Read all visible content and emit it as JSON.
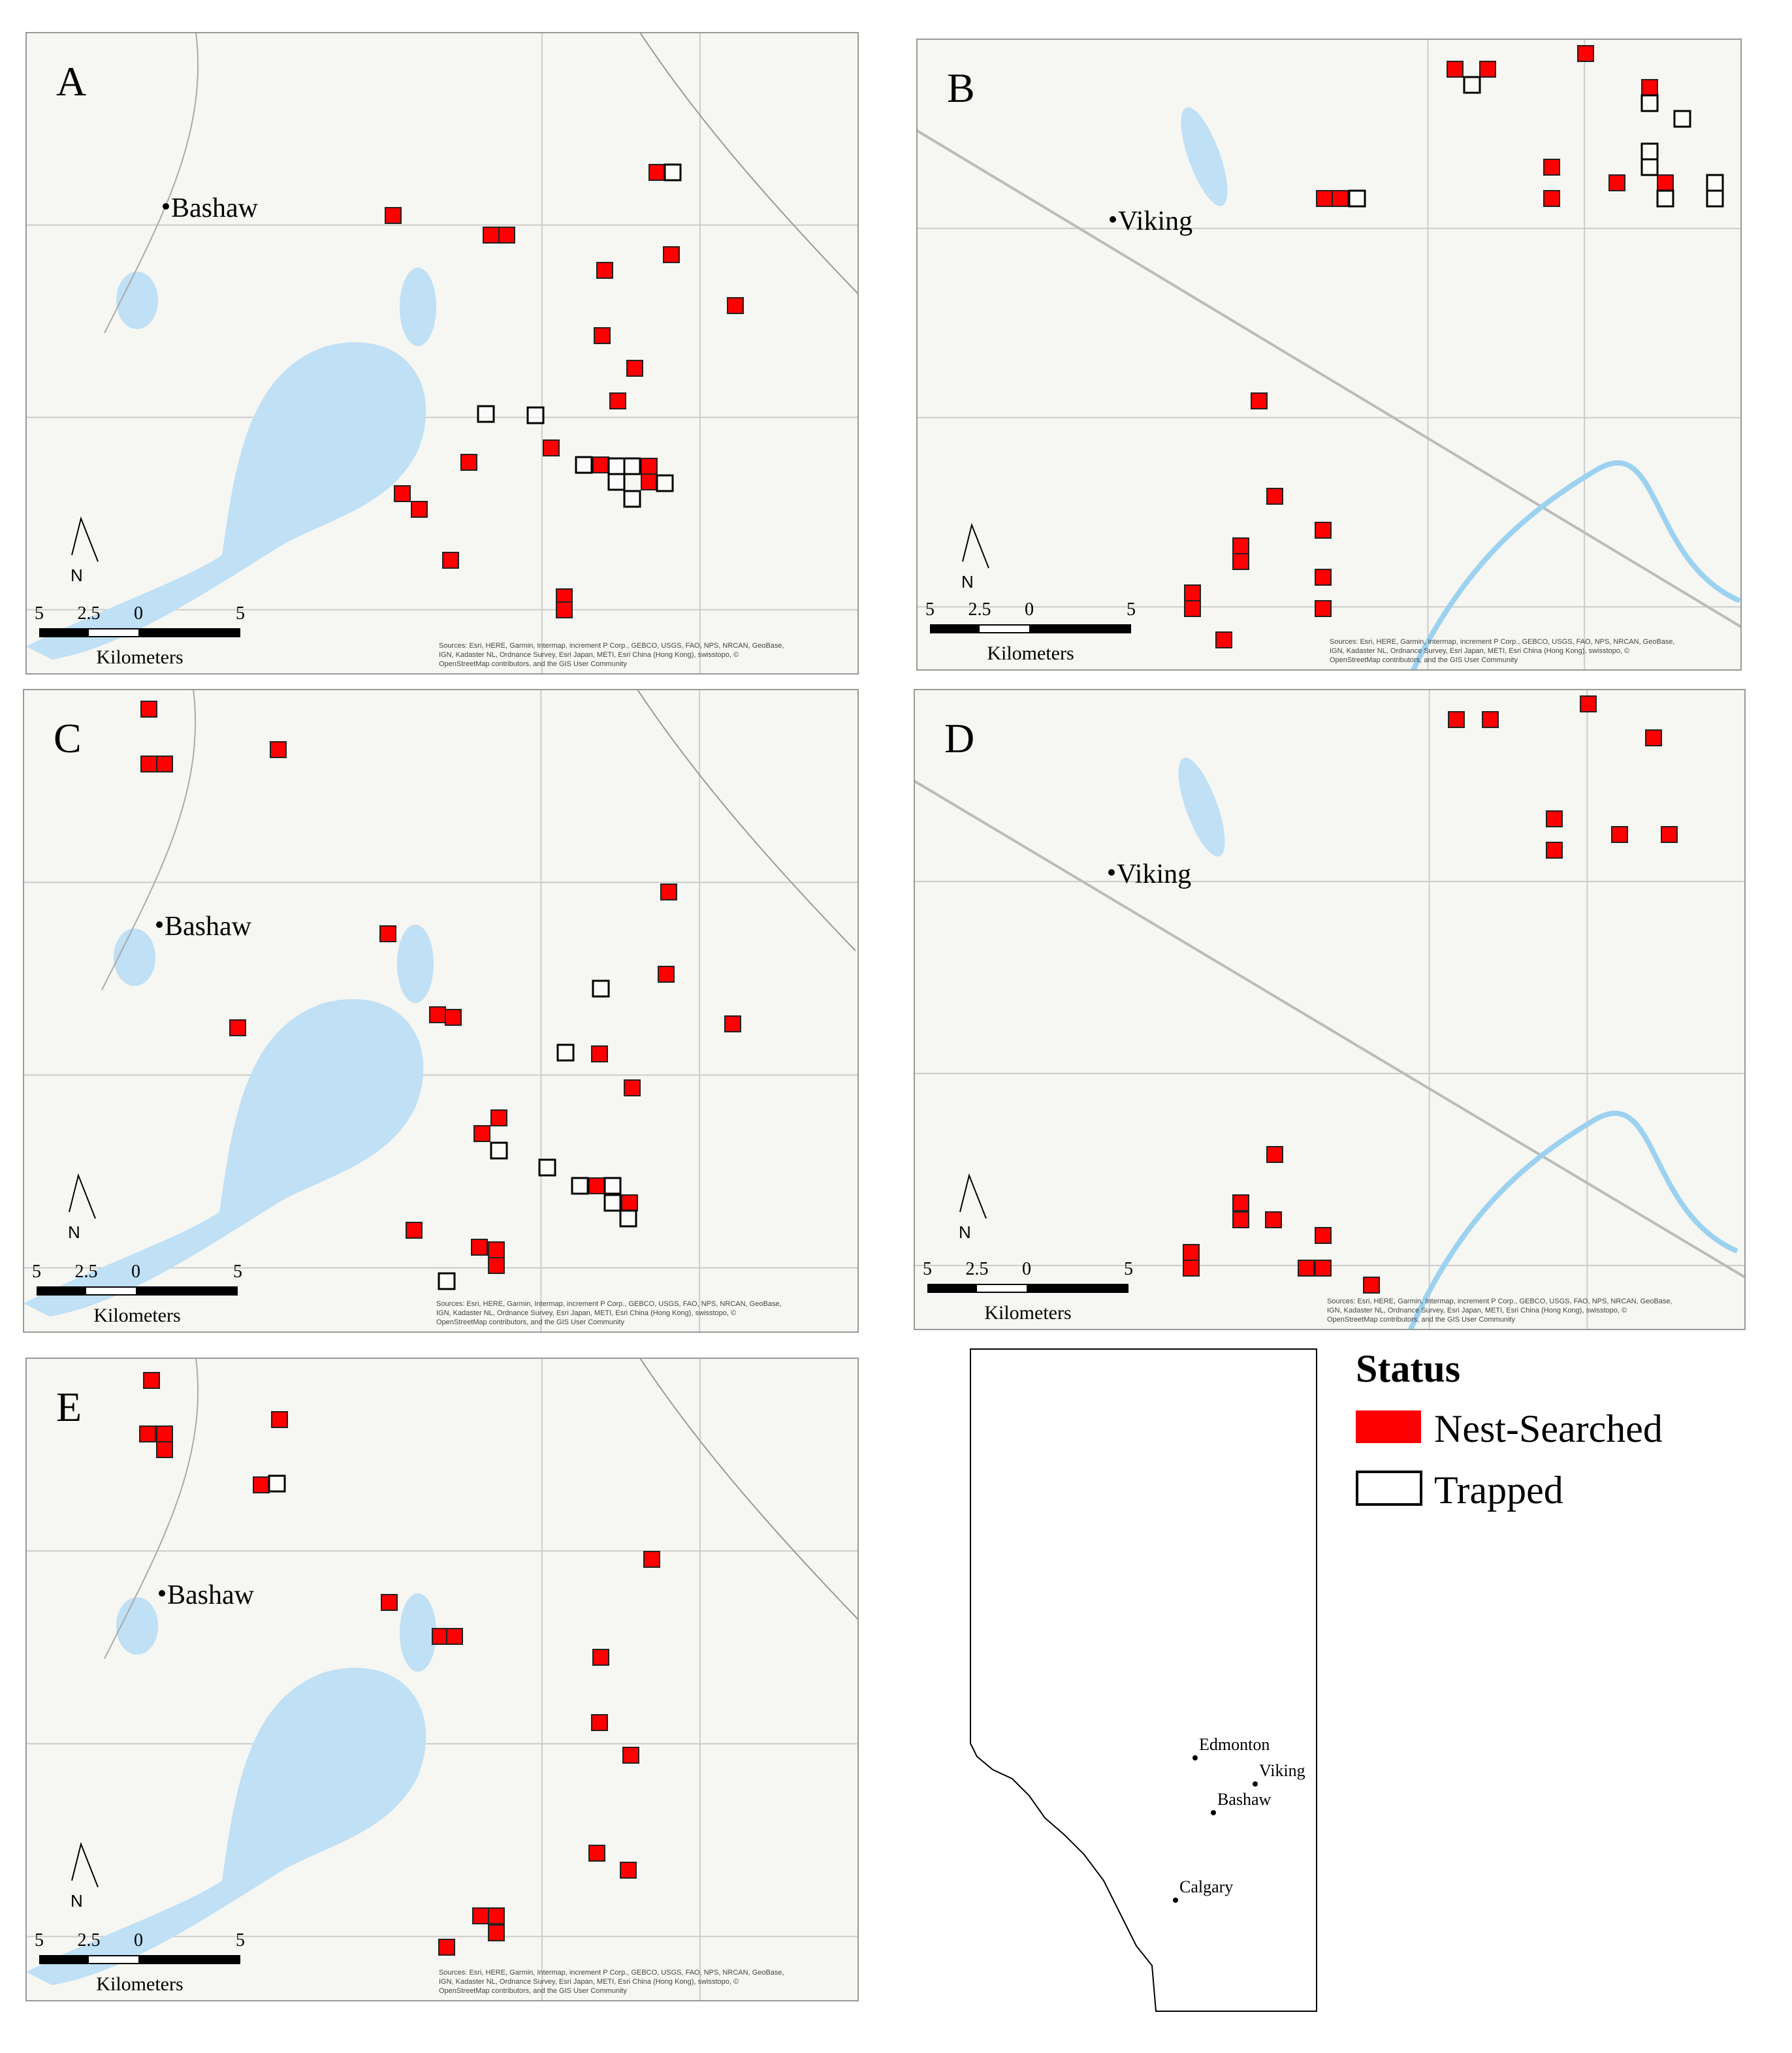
{
  "panels": [
    {
      "label": "A",
      "town": "Bashaw",
      "scale": [
        "5",
        "2.5",
        "0",
        "5"
      ],
      "units": "Kilometers",
      "attribution": [
        "Sources: Esri, HERE, Garmin, Intermap, increment P Corp., GEBCO, USGS, FAO, NPS, NRCAN, GeoBase,",
        "IGN, Kadaster NL, Ordnance Survey, Esri Japan, METI, Esri China (Hong Kong), swisstopo, ©",
        "OpenStreetMap contributors, and the GIS User Community"
      ],
      "north": "N"
    },
    {
      "label": "B",
      "town": "Viking",
      "scale": [
        "5",
        "2.5",
        "0",
        "5"
      ],
      "units": "Kilometers",
      "attribution": [
        "Sources: Esri, HERE, Garmin, Intermap, increment P Corp., GEBCO, USGS, FAO, NPS, NRCAN, GeoBase,",
        "IGN, Kadaster NL, Ordnance Survey, Esri Japan, METI, Esri China (Hong Kong), swisstopo, ©",
        "OpenStreetMap contributors, and the GIS User Community"
      ],
      "north": "N"
    },
    {
      "label": "C",
      "town": "Bashaw",
      "scale": [
        "5",
        "2.5",
        "0",
        "5"
      ],
      "units": "Kilometers",
      "attribution": [
        "Sources: Esri, HERE, Garmin, Intermap, increment P Corp., GEBCO, USGS, FAO, NPS, NRCAN, GeoBase,",
        "IGN, Kadaster NL, Ordnance Survey, Esri Japan, METI, Esri China (Hong Kong), swisstopo, ©",
        "OpenStreetMap contributors, and the GIS User Community"
      ],
      "north": "N"
    },
    {
      "label": "D",
      "town": "Viking",
      "scale": [
        "5",
        "2.5",
        "0",
        "5"
      ],
      "units": "Kilometers",
      "attribution": [
        "Sources: Esri, HERE, Garmin, Intermap, increment P Corp., GEBCO, USGS, FAO, NPS, NRCAN, GeoBase,",
        "IGN, Kadaster NL, Ordnance Survey, Esri Japan, METI, Esri China (Hong Kong), swisstopo, ©",
        "OpenStreetMap contributors, and the GIS User Community"
      ],
      "north": "N"
    },
    {
      "label": "E",
      "town": "Bashaw",
      "scale": [
        "5",
        "2.5",
        "0",
        "5"
      ],
      "units": "Kilometers",
      "attribution": [
        "Sources: Esri, HERE, Garmin, Intermap, increment P Corp., GEBCO, USGS, FAO, NPS, NRCAN, GeoBase,",
        "IGN, Kadaster NL, Ordnance Survey, Esri Japan, METI, Esri China (Hong Kong), swisstopo, ©",
        "OpenStreetMap contributors, and the GIS User Community"
      ],
      "north": "N"
    }
  ],
  "legend": {
    "title": "Status",
    "items": [
      "Nest-Searched",
      "Trapped"
    ]
  },
  "inset": {
    "cities": [
      "Edmonton",
      "Viking",
      "Bashaw",
      "Calgary"
    ]
  }
}
